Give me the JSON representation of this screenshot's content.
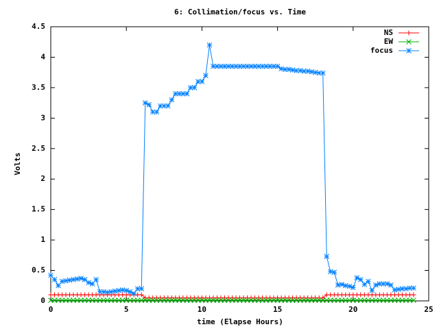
{
  "chart_data": {
    "type": "line",
    "title": "6: Collimation/focus vs. Time",
    "xlabel": "time (Elapse Hours)",
    "ylabel": "Volts",
    "xlim": [
      0,
      25
    ],
    "xticks": [
      0,
      5,
      10,
      15,
      20,
      25
    ],
    "ylim": [
      0,
      4.5
    ],
    "yticks": [
      0,
      0.5,
      1,
      1.5,
      2,
      2.5,
      3,
      3.5,
      4,
      4.5
    ],
    "legend": "top-right",
    "x": [
      0,
      0.25,
      0.5,
      0.75,
      1,
      1.25,
      1.5,
      1.75,
      2,
      2.25,
      2.5,
      2.75,
      3,
      3.25,
      3.5,
      3.75,
      4,
      4.25,
      4.5,
      4.75,
      5,
      5.25,
      5.5,
      5.75,
      6,
      6.25,
      6.5,
      6.75,
      7,
      7.25,
      7.5,
      7.75,
      8,
      8.25,
      8.5,
      8.75,
      9,
      9.25,
      9.5,
      9.75,
      10,
      10.25,
      10.5,
      10.75,
      11,
      11.25,
      11.5,
      11.75,
      12,
      12.25,
      12.5,
      12.75,
      13,
      13.25,
      13.5,
      13.75,
      14,
      14.25,
      14.5,
      14.75,
      15,
      15.25,
      15.5,
      15.75,
      16,
      16.25,
      16.5,
      16.75,
      17,
      17.25,
      17.5,
      17.75,
      18,
      18.25,
      18.5,
      18.75,
      19,
      19.25,
      19.5,
      19.75,
      20,
      20.25,
      20.5,
      20.75,
      21,
      21.25,
      21.5,
      21.75,
      22,
      22.25,
      22.5,
      22.75,
      23,
      23.25,
      23.5,
      23.75,
      24
    ],
    "series": [
      {
        "name": "NS",
        "color": "#ff0000",
        "marker": "plus",
        "values": [
          0.1,
          0.1,
          0.1,
          0.1,
          0.1,
          0.1,
          0.1,
          0.1,
          0.1,
          0.1,
          0.1,
          0.1,
          0.1,
          0.1,
          0.1,
          0.1,
          0.1,
          0.1,
          0.1,
          0.1,
          0.1,
          0.1,
          0.1,
          0.1,
          0.1,
          0.05,
          0.05,
          0.05,
          0.05,
          0.05,
          0.05,
          0.05,
          0.05,
          0.05,
          0.05,
          0.05,
          0.05,
          0.05,
          0.05,
          0.05,
          0.05,
          0.05,
          0.05,
          0.05,
          0.05,
          0.05,
          0.05,
          0.05,
          0.05,
          0.05,
          0.05,
          0.05,
          0.05,
          0.05,
          0.05,
          0.05,
          0.05,
          0.05,
          0.05,
          0.05,
          0.05,
          0.05,
          0.05,
          0.05,
          0.05,
          0.05,
          0.05,
          0.05,
          0.05,
          0.05,
          0.05,
          0.05,
          0.05,
          0.1,
          0.1,
          0.1,
          0.1,
          0.1,
          0.1,
          0.1,
          0.1,
          0.1,
          0.1,
          0.1,
          0.1,
          0.1,
          0.1,
          0.1,
          0.1,
          0.1,
          0.1,
          0.1,
          0.1,
          0.1,
          0.1,
          0.1,
          0.1
        ]
      },
      {
        "name": "EW",
        "color": "#00b000",
        "marker": "cross",
        "values": [
          0.01,
          0.01,
          0.01,
          0.01,
          0.01,
          0.01,
          0.01,
          0.01,
          0.01,
          0.01,
          0.01,
          0.01,
          0.01,
          0.01,
          0.01,
          0.01,
          0.01,
          0.01,
          0.01,
          0.01,
          0.01,
          0.01,
          0.01,
          0.01,
          0.01,
          0.01,
          0.01,
          0.01,
          0.01,
          0.01,
          0.01,
          0.01,
          0.01,
          0.01,
          0.01,
          0.01,
          0.01,
          0.01,
          0.01,
          0.01,
          0.01,
          0.01,
          0.01,
          0.01,
          0.01,
          0.01,
          0.01,
          0.01,
          0.01,
          0.01,
          0.01,
          0.01,
          0.01,
          0.01,
          0.01,
          0.01,
          0.01,
          0.01,
          0.01,
          0.01,
          0.01,
          0.01,
          0.01,
          0.01,
          0.01,
          0.01,
          0.01,
          0.01,
          0.01,
          0.01,
          0.01,
          0.01,
          0.01,
          0.01,
          0.01,
          0.01,
          0.01,
          0.01,
          0.01,
          0.01,
          0.01,
          0.01,
          0.01,
          0.01,
          0.01,
          0.01,
          0.01,
          0.01,
          0.01,
          0.01,
          0.01,
          0.01,
          0.01,
          0.01,
          0.01,
          0.01,
          0.01
        ]
      },
      {
        "name": "focus",
        "color": "#0080ff",
        "marker": "star",
        "values": [
          0.42,
          0.35,
          0.25,
          0.32,
          0.33,
          0.34,
          0.35,
          0.36,
          0.37,
          0.35,
          0.3,
          0.28,
          0.35,
          0.15,
          0.15,
          0.14,
          0.15,
          0.16,
          0.17,
          0.18,
          0.17,
          0.15,
          0.12,
          0.2,
          0.2,
          3.25,
          3.22,
          3.1,
          3.1,
          3.2,
          3.2,
          3.2,
          3.3,
          3.4,
          3.4,
          3.4,
          3.4,
          3.5,
          3.5,
          3.6,
          3.6,
          3.7,
          4.2,
          3.85,
          3.85,
          3.85,
          3.85,
          3.85,
          3.85,
          3.85,
          3.85,
          3.85,
          3.85,
          3.85,
          3.85,
          3.85,
          3.85,
          3.85,
          3.85,
          3.85,
          3.85,
          3.81,
          3.8,
          3.8,
          3.79,
          3.78,
          3.78,
          3.77,
          3.77,
          3.76,
          3.75,
          3.74,
          3.74,
          0.73,
          0.48,
          0.47,
          0.26,
          0.27,
          0.25,
          0.24,
          0.22,
          0.38,
          0.35,
          0.27,
          0.32,
          0.17,
          0.26,
          0.28,
          0.28,
          0.28,
          0.26,
          0.18,
          0.19,
          0.2,
          0.2,
          0.21,
          0.21
        ]
      }
    ]
  }
}
